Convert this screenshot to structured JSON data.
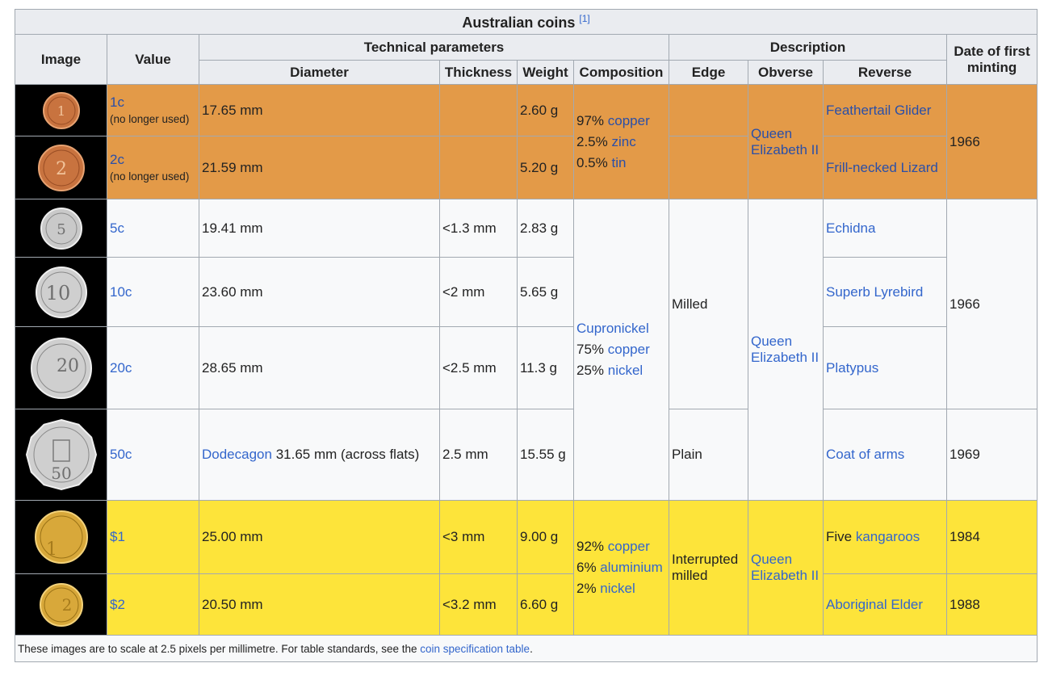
{
  "table": {
    "caption": "Australian coins",
    "caption_ref": "[1]",
    "headers": {
      "image": "Image",
      "value": "Value",
      "technical": "Technical parameters",
      "description": "Description",
      "date": "Date of first minting",
      "diameter": "Diameter",
      "thickness": "Thickness",
      "weight": "Weight",
      "composition": "Composition",
      "edge": "Edge",
      "obverse": "Obverse",
      "reverse": "Reverse"
    },
    "rows": {
      "c1": {
        "value": "1c",
        "note": "(no longer used)",
        "diameter": "17.65 mm",
        "weight": "2.60 g",
        "reverse": "Feathertail Glider",
        "coin_label": "1"
      },
      "c2": {
        "value": "2c",
        "note": "(no longer used)",
        "diameter": "21.59 mm",
        "weight": "5.20 g",
        "reverse": "Frill-necked Lizard",
        "coin_label": "2"
      },
      "c5": {
        "value": "5c",
        "diameter": "19.41 mm",
        "thickness": "<1.3 mm",
        "weight": "2.83 g",
        "reverse": "Echidna",
        "coin_label": "5"
      },
      "c10": {
        "value": "10c",
        "diameter": "23.60 mm",
        "thickness": "<2 mm",
        "weight": "5.65 g",
        "reverse": "Superb Lyrebird",
        "coin_label": "10"
      },
      "c20": {
        "value": "20c",
        "diameter": "28.65 mm",
        "thickness": "<2.5 mm",
        "weight": "11.3 g",
        "reverse": "Platypus",
        "coin_label": "20"
      },
      "c50": {
        "value": "50c",
        "diameter_link": "Dodecagon",
        "diameter": " 31.65 mm (across flats)",
        "thickness": "2.5 mm",
        "weight": "15.55 g",
        "reverse": "Coat of arms",
        "date": "1969",
        "coin_label": "50"
      },
      "d1": {
        "value": "$1",
        "diameter": "25.00 mm",
        "thickness": "<3 mm",
        "weight": "9.00 g",
        "reverse_text": "Five ",
        "reverse_link": "kangaroos",
        "date": "1984",
        "coin_label": "1"
      },
      "d2": {
        "value": "$2",
        "diameter": "20.50 mm",
        "thickness": "<3.2 mm",
        "weight": "6.60 g",
        "reverse": "Aboriginal Elder",
        "date": "1988",
        "coin_label": "2"
      }
    },
    "groups": {
      "bronze": {
        "composition": [
          {
            "pct": "97% ",
            "metal": "copper"
          },
          {
            "pct": "2.5% ",
            "metal": "zinc"
          },
          {
            "pct": "0.5% ",
            "metal": "tin"
          }
        ],
        "obverse": "Queen Elizabeth II",
        "date": "1966"
      },
      "cupro": {
        "composition_title": "Cupronickel",
        "composition": [
          {
            "pct": "75% ",
            "metal": "copper"
          },
          {
            "pct": "25% ",
            "metal": "nickel"
          }
        ],
        "edge_milled": "Milled",
        "edge_plain": "Plain",
        "obverse": "Queen Elizabeth II",
        "date": "1966"
      },
      "dollar": {
        "composition": [
          {
            "pct": "92% ",
            "metal": "copper"
          },
          {
            "pct": "6% ",
            "metal": "aluminium"
          },
          {
            "pct": "2% ",
            "metal": "nickel"
          }
        ],
        "edge": "Interrupted milled",
        "obverse": "Queen Elizabeth II"
      }
    },
    "footer": {
      "text": "These images are to scale at 2.5 pixels per millimetre. For table standards, see the ",
      "link": "coin specification table",
      "end": "."
    }
  },
  "colors": {
    "bronze_row": "#e39a48",
    "cupro_row": "#f8f9fa",
    "dollar_row": "#fde43a",
    "header": "#eaecf0",
    "link": "#3366cc",
    "image_bg": "#000000"
  }
}
